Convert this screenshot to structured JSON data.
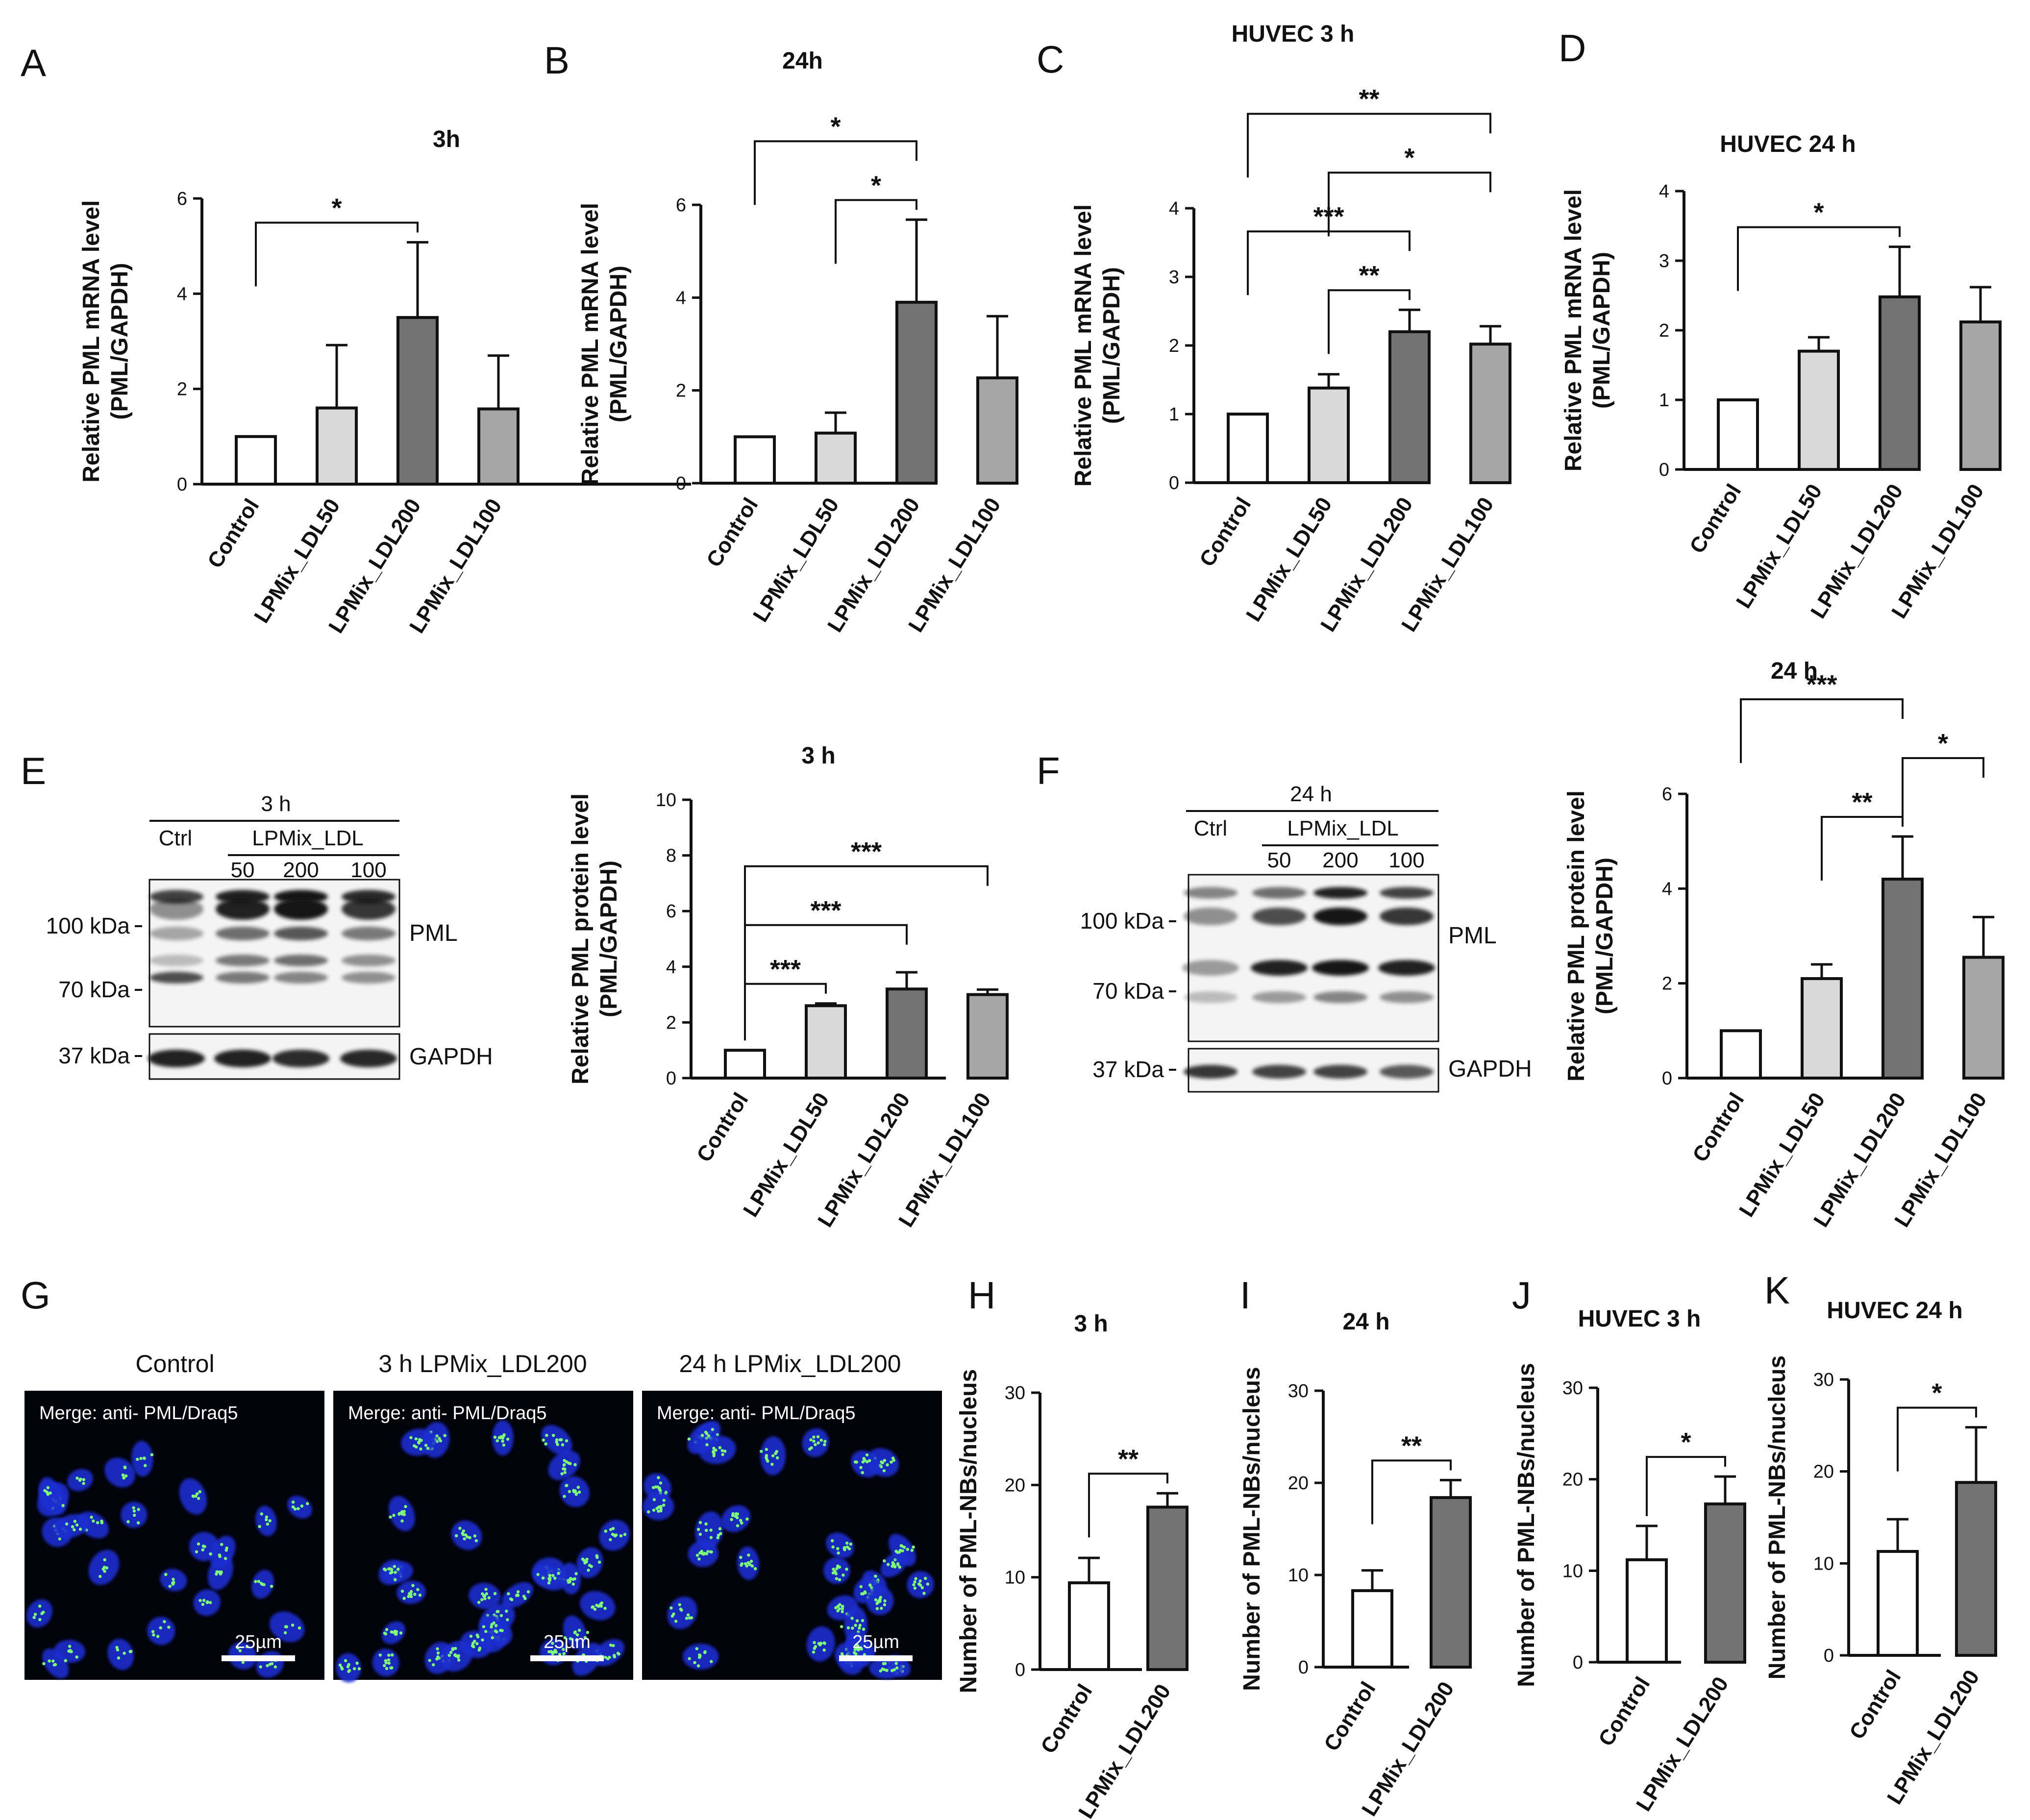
{
  "panels": {
    "A": {
      "letter": "A"
    },
    "B": {
      "letter": "B"
    },
    "C": {
      "letter": "C"
    },
    "D": {
      "letter": "D"
    },
    "E": {
      "letter": "E"
    },
    "F": {
      "letter": "F"
    },
    "G": {
      "letter": "G"
    },
    "H": {
      "letter": "H"
    },
    "I": {
      "letter": "I"
    },
    "J": {
      "letter": "J"
    },
    "K": {
      "letter": "K"
    }
  },
  "blots": {
    "E": {
      "time": "3 h",
      "ctrl": "Ctrl",
      "treatment": "LPMix_LDL",
      "doses": [
        "50",
        "200",
        "100"
      ],
      "markers": [
        "100 kDa",
        "70 kDa",
        "37 kDa"
      ],
      "proteins": [
        "PML",
        "GAPDH"
      ]
    },
    "F": {
      "time": "24 h",
      "ctrl": "Ctrl",
      "treatment": "LPMix_LDL",
      "doses": [
        "50",
        "200",
        "100"
      ],
      "markers": [
        "100 kDa",
        "70 kDa",
        "37 kDa"
      ],
      "proteins": [
        "PML",
        "GAPDH"
      ]
    }
  },
  "micrographs": {
    "titles": [
      "Control",
      "3 h LPMix_LDL200",
      "24 h LPMix_LDL200"
    ],
    "overlay": "Merge: anti- PML/Draq5",
    "scale_bar": "25µm",
    "colors": {
      "background": "#03030c",
      "nucleus": "#1f2fd0",
      "nb": "#7fff7a"
    }
  },
  "chart_colors": {
    "control": "#ffffff",
    "ldl50": "#d9d9d9",
    "ldl200": "#737373",
    "ldl100": "#a6a6a6"
  },
  "chart_data": [
    {
      "id": "A",
      "type": "bar",
      "title": "3h",
      "ylabel": [
        "Relative PML mRNA level",
        "(PML/GAPDH)"
      ],
      "categories": [
        "Control",
        "LPMix_LDL50",
        "LPMix_LDL200",
        "LPMix_LDL100"
      ],
      "values": [
        1.0,
        1.6,
        3.5,
        1.58
      ],
      "errors": [
        0,
        1.32,
        1.58,
        1.12
      ],
      "ylim": [
        0,
        6
      ],
      "yticks": [
        0,
        2,
        4,
        6
      ],
      "significance": [
        {
          "from": 0,
          "to": 2,
          "label": "*"
        }
      ]
    },
    {
      "id": "B",
      "type": "bar",
      "title": "24h",
      "ylabel": [
        "Relative PML mRNA level",
        "(PML/GAPDH)"
      ],
      "categories": [
        "Control",
        "LPMix_LDL50",
        "LPMix_LDL200",
        "LPMix_LDL100"
      ],
      "values": [
        1.0,
        1.08,
        3.9,
        2.27
      ],
      "errors": [
        0,
        0.44,
        1.78,
        1.33
      ],
      "ylim": [
        0,
        6
      ],
      "yticks": [
        0,
        2,
        4,
        6
      ],
      "significance": [
        {
          "from": 1,
          "to": 2,
          "label": "*"
        },
        {
          "from": 0,
          "to": 2,
          "label": "*"
        }
      ]
    },
    {
      "id": "C",
      "type": "bar",
      "title": "HUVEC 3 h",
      "ylabel": [
        "Relative PML mRNA level",
        "(PML/GAPDH)"
      ],
      "categories": [
        "Control",
        "LPMix_LDL50",
        "LPMix_LDL200",
        "LPMix_LDL100"
      ],
      "values": [
        1.0,
        1.38,
        2.2,
        2.02
      ],
      "errors": [
        0,
        0.2,
        0.32,
        0.26
      ],
      "ylim": [
        0,
        4
      ],
      "yticks": [
        0,
        1,
        2,
        3,
        4
      ],
      "significance": [
        {
          "from": 1,
          "to": 2,
          "label": "**"
        },
        {
          "from": 0,
          "to": 2,
          "label": "***"
        },
        {
          "from": 1,
          "to": 3,
          "label": "*"
        },
        {
          "from": 0,
          "to": 3,
          "label": "**"
        }
      ]
    },
    {
      "id": "D",
      "type": "bar",
      "title": "HUVEC 24 h",
      "ylabel": [
        "Relative PML mRNA level",
        "(PML/GAPDH)"
      ],
      "categories": [
        "Control",
        "LPMix_LDL50",
        "LPMix_LDL200",
        "LPMix_LDL100"
      ],
      "values": [
        1.0,
        1.7,
        2.48,
        2.12
      ],
      "errors": [
        0,
        0.2,
        0.72,
        0.5
      ],
      "ylim": [
        0,
        4
      ],
      "yticks": [
        0,
        1,
        2,
        3,
        4
      ],
      "significance": [
        {
          "from": 0,
          "to": 2,
          "label": "*"
        }
      ]
    },
    {
      "id": "E",
      "type": "bar",
      "title": "3 h",
      "ylabel": [
        "Relative PML protein level",
        "(PML/GAPDH)"
      ],
      "categories": [
        "Control",
        "LPMix_LDL50",
        "LPMix_LDL200",
        "LPMix_LDL100"
      ],
      "values": [
        1.0,
        2.6,
        3.2,
        3.0
      ],
      "errors": [
        0,
        0.08,
        0.6,
        0.18
      ],
      "ylim": [
        0,
        10
      ],
      "yticks": [
        0,
        2,
        4,
        6,
        8,
        10
      ],
      "significance": [
        {
          "from": 0,
          "to": 1,
          "label": "***"
        },
        {
          "from": 0,
          "to": 2,
          "label": "***"
        },
        {
          "from": 0,
          "to": 3,
          "label": "***"
        }
      ]
    },
    {
      "id": "F",
      "type": "bar",
      "title": "24 h",
      "ylabel": [
        "Relative PML protein level",
        "(PML/GAPDH)"
      ],
      "categories": [
        "Control",
        "LPMix_LDL50",
        "LPMix_LDL200",
        "LPMix_LDL100"
      ],
      "values": [
        1.0,
        2.1,
        4.2,
        2.55
      ],
      "errors": [
        0,
        0.3,
        0.9,
        0.85
      ],
      "ylim": [
        0,
        6
      ],
      "yticks": [
        0,
        2,
        4,
        6
      ],
      "significance": [
        {
          "from": 1,
          "to": 2,
          "label": "**"
        },
        {
          "from": 2,
          "to": 3,
          "label": "*"
        },
        {
          "from": 0,
          "to": 2,
          "label": "***"
        }
      ]
    },
    {
      "id": "H",
      "type": "bar",
      "title": "3 h",
      "ylabel": [
        "Number of PML-NBs/nucleus"
      ],
      "categories": [
        "Control",
        "LPMix_LDL200"
      ],
      "values": [
        9.4,
        17.6
      ],
      "errors": [
        2.7,
        1.5
      ],
      "ylim": [
        0,
        30
      ],
      "yticks": [
        0,
        10,
        20,
        30
      ],
      "significance": [
        {
          "from": 0,
          "to": 1,
          "label": "**"
        }
      ]
    },
    {
      "id": "I",
      "type": "bar",
      "title": "24 h",
      "ylabel": [
        "Number of PML-NBs/nucleus"
      ],
      "categories": [
        "Control",
        "LPMix_LDL200"
      ],
      "values": [
        8.3,
        18.4
      ],
      "errors": [
        2.2,
        1.9
      ],
      "ylim": [
        0,
        30
      ],
      "yticks": [
        0,
        10,
        20,
        30
      ],
      "significance": [
        {
          "from": 0,
          "to": 1,
          "label": "**"
        }
      ]
    },
    {
      "id": "J",
      "type": "bar",
      "title": "HUVEC 3 h",
      "ylabel": [
        "Number of PML-NBs/nucleus"
      ],
      "categories": [
        "Control",
        "LPMix_LDL200"
      ],
      "values": [
        11.2,
        17.3
      ],
      "errors": [
        3.7,
        3.0
      ],
      "ylim": [
        0,
        30
      ],
      "yticks": [
        0,
        10,
        20,
        30
      ],
      "significance": [
        {
          "from": 0,
          "to": 1,
          "label": "*"
        }
      ]
    },
    {
      "id": "K",
      "type": "bar",
      "title": "HUVEC 24 h",
      "ylabel": [
        "Number of PML-NBs/nucleus"
      ],
      "categories": [
        "Control",
        "LPMix_LDL200"
      ],
      "values": [
        11.3,
        18.8
      ],
      "errors": [
        3.5,
        6.0
      ],
      "ylim": [
        0,
        30
      ],
      "yticks": [
        0,
        10,
        20,
        30
      ],
      "significance": [
        {
          "from": 0,
          "to": 1,
          "label": "*"
        }
      ]
    }
  ]
}
